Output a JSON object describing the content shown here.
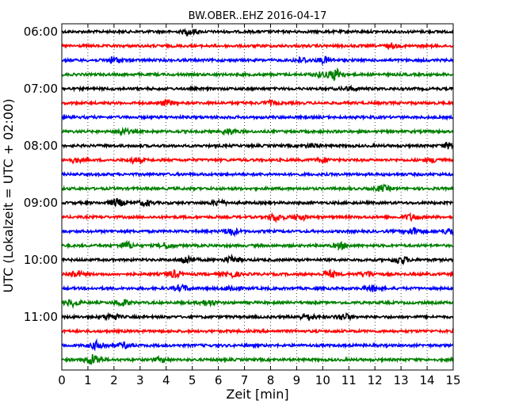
{
  "chart_data": {
    "type": "line",
    "title": "BW.OBER..EHZ 2016-04-17",
    "xlabel": "Zeit  [min]",
    "ylabel": "UTC (Lokalzeit = UTC + 02:00)",
    "xlim": [
      0,
      15
    ],
    "x_ticks": [
      "0",
      "1",
      "2",
      "3",
      "4",
      "5",
      "6",
      "7",
      "8",
      "9",
      "10",
      "11",
      "12",
      "13",
      "14",
      "15"
    ],
    "y_ticks": [
      "06:00",
      "07:00",
      "08:00",
      "09:00",
      "10:00",
      "11:00"
    ],
    "grid": "vertical dotted",
    "color_cycle": [
      "#000000",
      "#ff0000",
      "#0000ff",
      "#008000"
    ],
    "traces": [
      {
        "start": "06:00",
        "color": "#000000",
        "bursts": [
          [
            4.9,
            0.7
          ]
        ]
      },
      {
        "start": "06:15",
        "color": "#ff0000",
        "bursts": [
          [
            12.6,
            0.5
          ]
        ]
      },
      {
        "start": "06:30",
        "color": "#0000ff",
        "bursts": [
          [
            2.0,
            0.9
          ],
          [
            9.2,
            0.7
          ],
          [
            10.1,
            0.8
          ]
        ]
      },
      {
        "start": "06:45",
        "color": "#008000",
        "bursts": [
          [
            10.5,
            1.6
          ],
          [
            9.9,
            0.6
          ]
        ]
      },
      {
        "start": "07:00",
        "color": "#000000",
        "bursts": [
          [
            11.0,
            0.5
          ]
        ]
      },
      {
        "start": "07:15",
        "color": "#ff0000",
        "bursts": [
          [
            4.0,
            0.7
          ],
          [
            8.0,
            0.5
          ]
        ]
      },
      {
        "start": "07:30",
        "color": "#0000ff",
        "bursts": []
      },
      {
        "start": "07:45",
        "color": "#008000",
        "bursts": [
          [
            2.3,
            0.8
          ],
          [
            6.4,
            0.7
          ]
        ]
      },
      {
        "start": "08:00",
        "color": "#000000",
        "bursts": [
          [
            14.9,
            0.9
          ],
          [
            9.6,
            0.5
          ]
        ]
      },
      {
        "start": "08:15",
        "color": "#ff0000",
        "bursts": [
          [
            0.5,
            0.6
          ],
          [
            2.8,
            0.7
          ],
          [
            10.0,
            0.6
          ],
          [
            14.3,
            0.6
          ]
        ]
      },
      {
        "start": "08:30",
        "color": "#0000ff",
        "bursts": []
      },
      {
        "start": "08:45",
        "color": "#008000",
        "bursts": [
          [
            12.3,
            0.8
          ]
        ]
      },
      {
        "start": "09:00",
        "color": "#000000",
        "bursts": [
          [
            2.1,
            1.0
          ],
          [
            3.2,
            0.7
          ],
          [
            6.0,
            0.7
          ]
        ]
      },
      {
        "start": "09:15",
        "color": "#ff0000",
        "bursts": [
          [
            8.2,
            1.0
          ],
          [
            9.1,
            0.8
          ],
          [
            13.4,
            0.8
          ]
        ]
      },
      {
        "start": "09:30",
        "color": "#0000ff",
        "bursts": [
          [
            6.5,
            1.0
          ],
          [
            13.5,
            1.0
          ],
          [
            14.9,
            0.9
          ]
        ]
      },
      {
        "start": "09:45",
        "color": "#008000",
        "bursts": [
          [
            2.5,
            0.9
          ],
          [
            4.0,
            0.8
          ],
          [
            10.7,
            0.8
          ]
        ]
      },
      {
        "start": "10:00",
        "color": "#000000",
        "bursts": [
          [
            4.8,
            1.1
          ],
          [
            6.5,
            0.9
          ],
          [
            13.0,
            1.0
          ]
        ]
      },
      {
        "start": "10:15",
        "color": "#ff0000",
        "bursts": [
          [
            0.5,
            0.9
          ],
          [
            4.3,
            0.9
          ],
          [
            6.5,
            0.8
          ],
          [
            10.3,
            0.9
          ],
          [
            11.7,
            0.8
          ]
        ]
      },
      {
        "start": "10:30",
        "color": "#0000ff",
        "bursts": [
          [
            4.6,
            0.8
          ],
          [
            6.5,
            0.8
          ],
          [
            11.9,
            0.8
          ]
        ]
      },
      {
        "start": "10:45",
        "color": "#008000",
        "bursts": [
          [
            0.4,
            0.9
          ],
          [
            2.3,
            0.9
          ],
          [
            5.6,
            0.8
          ]
        ]
      },
      {
        "start": "11:00",
        "color": "#000000",
        "bursts": [
          [
            1.9,
            0.9
          ],
          [
            9.4,
            0.9
          ],
          [
            10.8,
            0.9
          ]
        ]
      },
      {
        "start": "11:15",
        "color": "#ff0000",
        "bursts": []
      },
      {
        "start": "11:30",
        "color": "#0000ff",
        "bursts": [
          [
            1.4,
            1.2
          ],
          [
            2.4,
            0.7
          ]
        ]
      },
      {
        "start": "11:45",
        "color": "#008000",
        "bursts": [
          [
            1.2,
            1.6
          ],
          [
            3.8,
            0.5
          ]
        ]
      }
    ]
  }
}
